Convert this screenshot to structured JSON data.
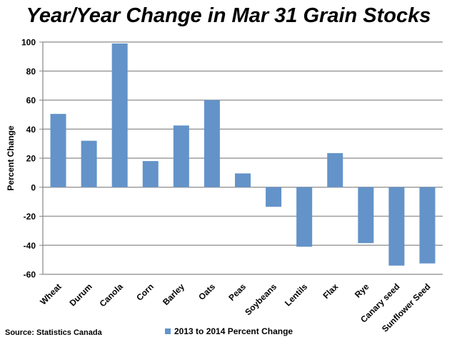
{
  "source": "Source: Statistics Canada",
  "colors": {
    "bar": "#6393C9",
    "grid": "#9E9E9E",
    "axis": "#868686"
  },
  "chart_data": {
    "type": "bar",
    "title": "Year/Year Change in Mar 31 Grain Stocks",
    "xlabel": "",
    "ylabel": "Percent Change",
    "ylim": [
      -60,
      100
    ],
    "yticks": [
      100,
      80,
      60,
      40,
      20,
      0,
      -20,
      -40,
      -60
    ],
    "grid": true,
    "legend_position": "bottom",
    "categories": [
      "Wheat",
      "Durum",
      "Canola",
      "Corn",
      "Barley",
      "Oats",
      "Peas",
      "Soybeans",
      "Lentils",
      "Flax",
      "Rye",
      "Canary seed",
      "Sunflower Seed"
    ],
    "series": [
      {
        "name": "2013 to 2014 Percent Change",
        "values": [
          50.5,
          32,
          99,
          18,
          42.5,
          60,
          9.5,
          -13.5,
          -41,
          23.5,
          -38.5,
          -54,
          -52.5
        ]
      }
    ]
  }
}
